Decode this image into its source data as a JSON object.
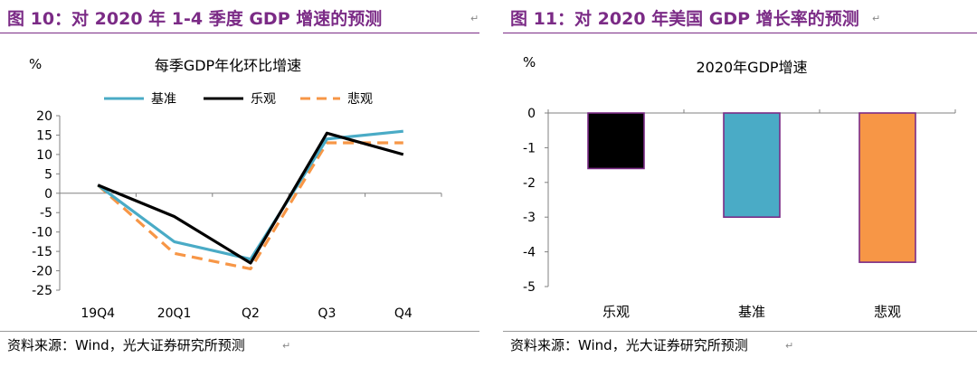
{
  "left": {
    "figure_title": "图 10：对 2020 年 1-4 季度 GDP 增速的预测",
    "title_mark": "↵",
    "source": "资料来源：Wind，光大证券研究所预测",
    "source_mark": "↵",
    "chart_data": {
      "type": "line",
      "title": "每季GDP年化环比增速",
      "ylabel": "%",
      "categories": [
        "19Q4",
        "20Q1",
        "Q2",
        "Q3",
        "Q4"
      ],
      "ylim": [
        -25,
        20
      ],
      "yticks": [
        20,
        15,
        10,
        5,
        0,
        -5,
        -10,
        -15,
        -20,
        -25
      ],
      "legend_position": "top",
      "series": [
        {
          "name": "基准",
          "color": "#4aabc6",
          "style": "solid",
          "values": [
            2.1,
            -12.5,
            -17.0,
            14.0,
            16.0
          ]
        },
        {
          "name": "乐观",
          "color": "#000000",
          "style": "solid",
          "values": [
            2.1,
            -6.0,
            -18.0,
            15.5,
            10.0
          ]
        },
        {
          "name": "悲观",
          "color": "#f79646",
          "style": "dashed",
          "values": [
            2.1,
            -15.5,
            -19.5,
            13.0,
            13.0
          ]
        }
      ]
    }
  },
  "right": {
    "figure_title": "图 11：对 2020 年美国 GDP 增长率的预测",
    "title_mark": "↵",
    "source": "资料来源：Wind，光大证券研究所预测",
    "source_mark": "↵",
    "chart_data": {
      "type": "bar",
      "title": "2020年GDP增速",
      "ylabel": "%",
      "categories": [
        "乐观",
        "基准",
        "悲观"
      ],
      "values": [
        -1.6,
        -3.0,
        -4.3
      ],
      "colors": [
        "#000000",
        "#4aabc6",
        "#f79646"
      ],
      "border_color": "#7b2b86",
      "ylim": [
        -5,
        0
      ],
      "yticks": [
        0,
        -1,
        -2,
        -3,
        -4,
        -5
      ]
    }
  }
}
